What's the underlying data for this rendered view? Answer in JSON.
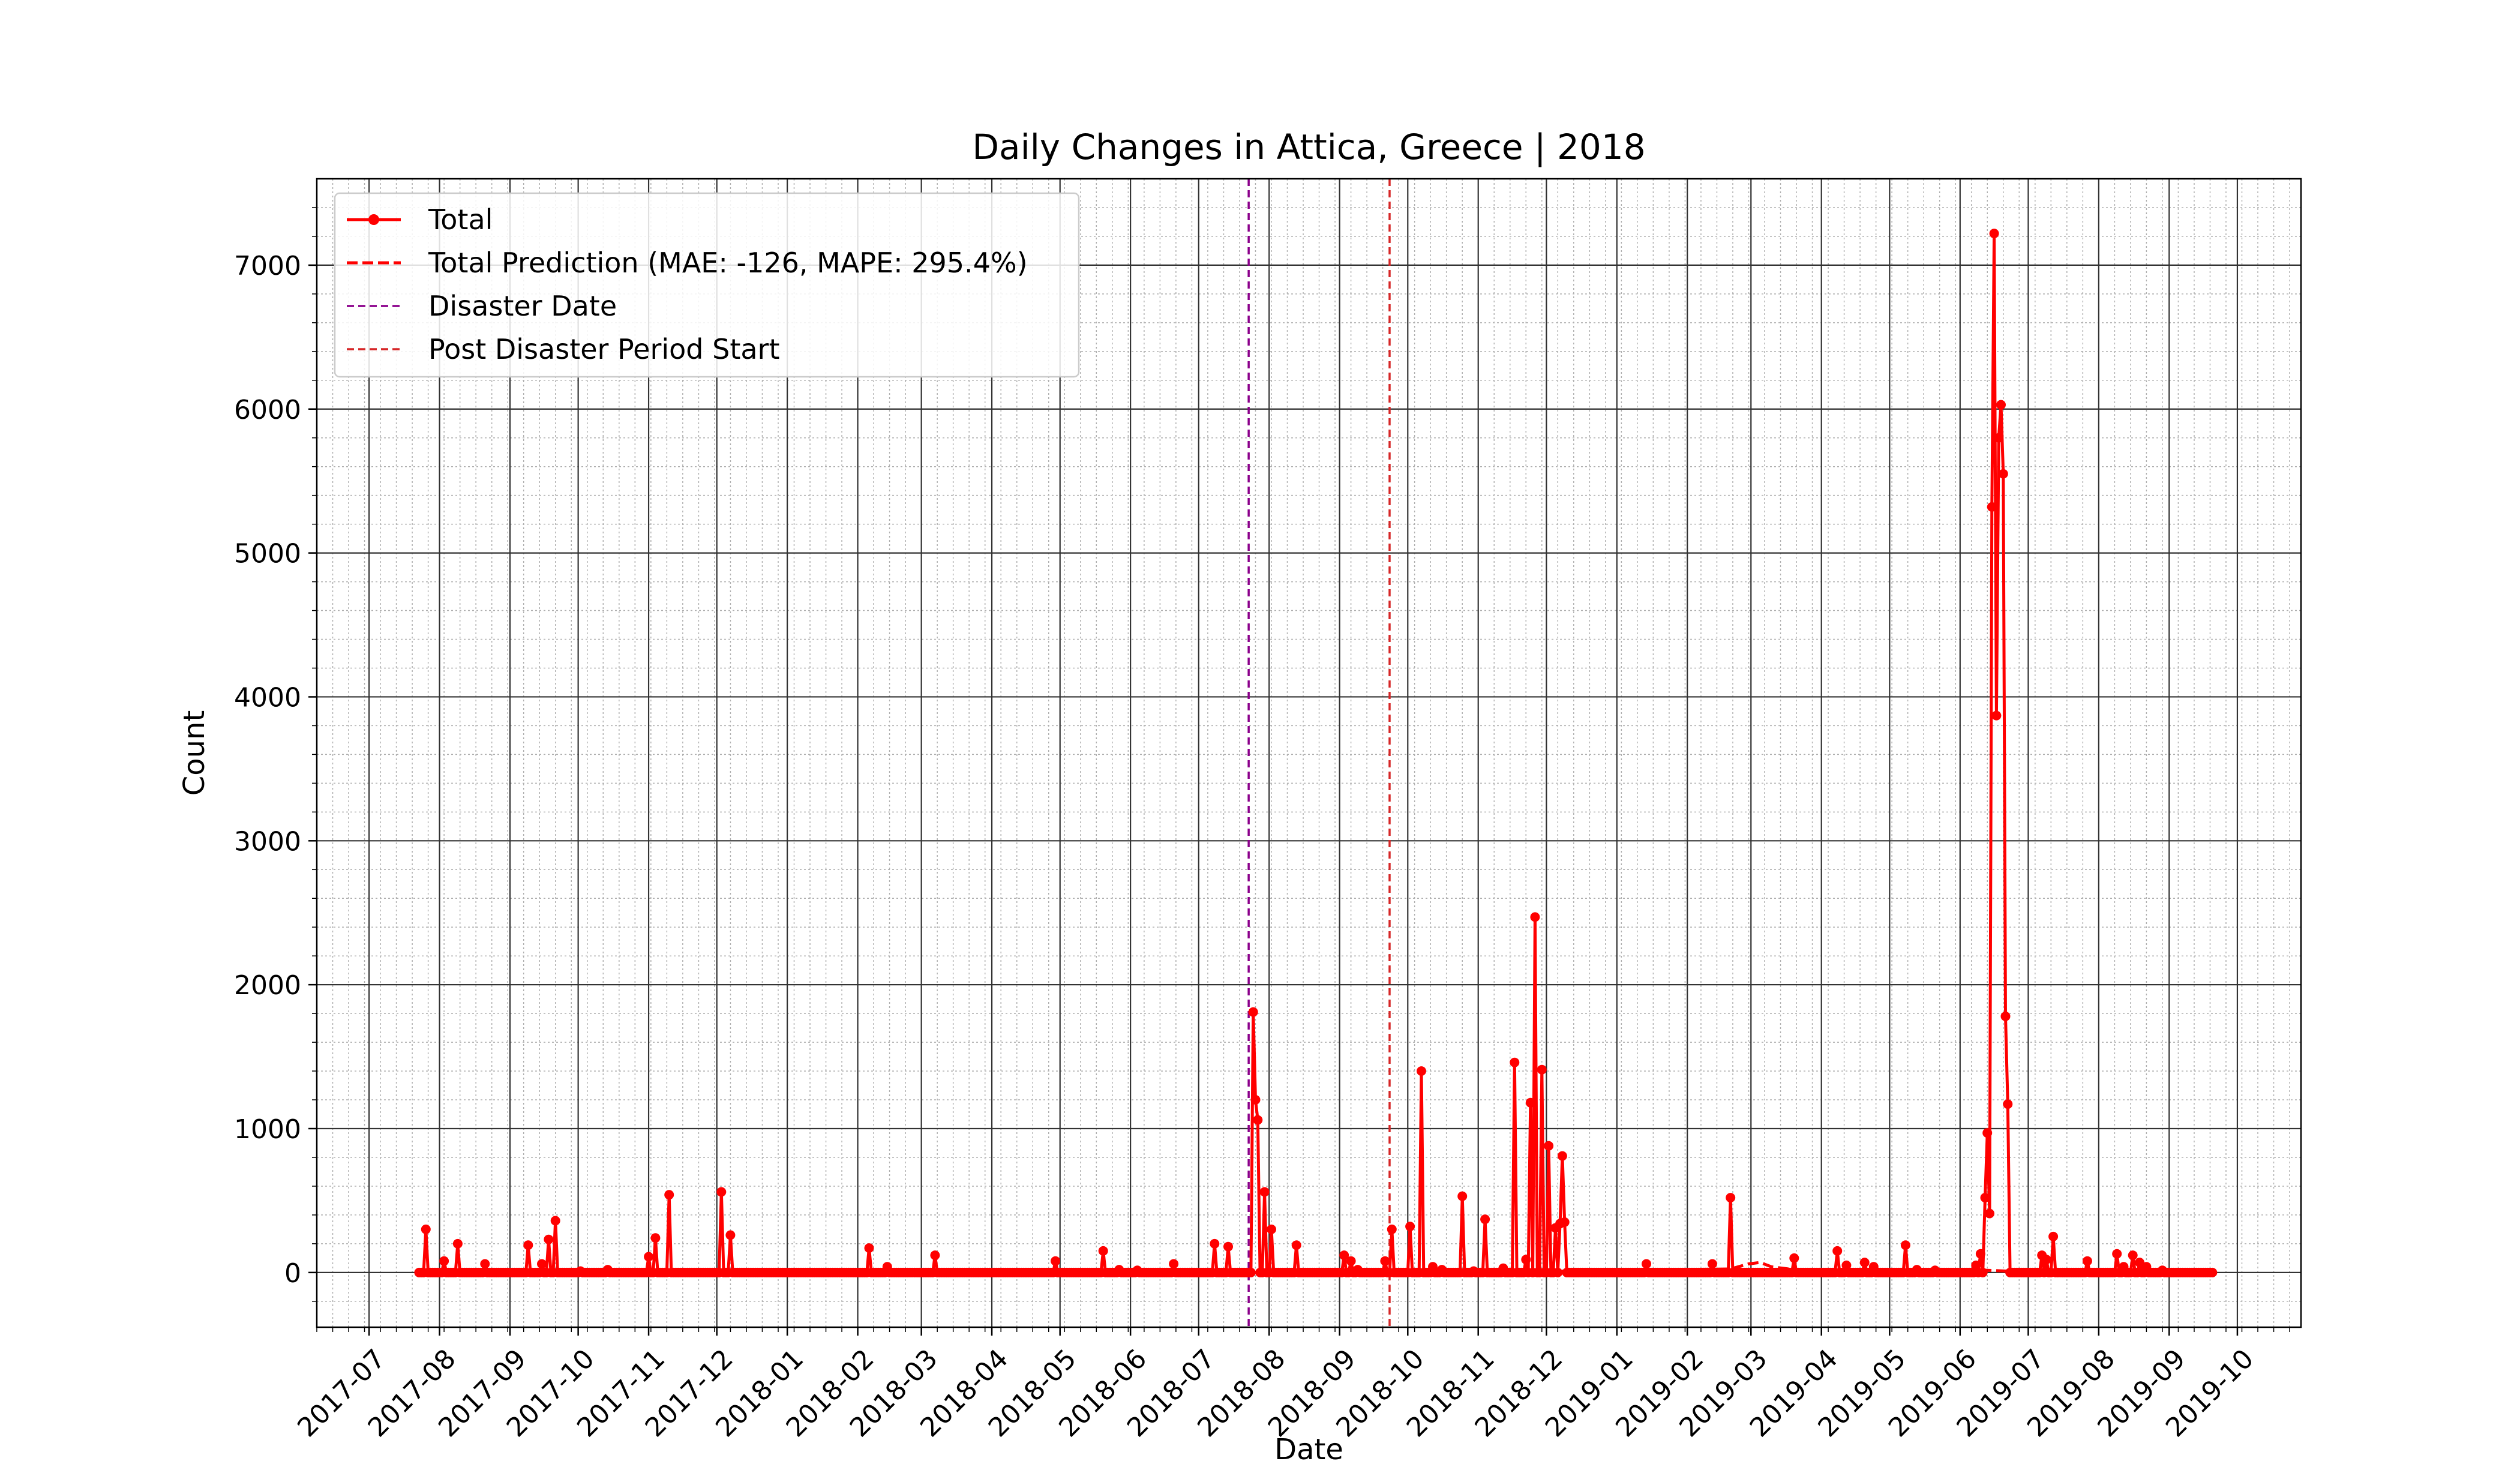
{
  "chart_data": {
    "type": "line",
    "title": "Daily Changes in Attica, Greece | 2018",
    "xlabel": "Date",
    "ylabel": "Count",
    "xlim": [
      "2017-06-08",
      "2019-10-29"
    ],
    "ylim": [
      -380,
      7600
    ],
    "grid": true,
    "legend_position": "top-left",
    "x_tick_labels": [
      "2017-07",
      "2017-08",
      "2017-09",
      "2017-10",
      "2017-11",
      "2017-12",
      "2018-01",
      "2018-02",
      "2018-03",
      "2018-04",
      "2018-05",
      "2018-06",
      "2018-07",
      "2018-08",
      "2018-09",
      "2018-10",
      "2018-11",
      "2018-12",
      "2019-01",
      "2019-02",
      "2019-03",
      "2019-04",
      "2019-05",
      "2019-06",
      "2019-07",
      "2019-08",
      "2019-09",
      "2019-10"
    ],
    "x_tick_dates": [
      "2017-07-01",
      "2017-08-01",
      "2017-09-01",
      "2017-10-01",
      "2017-11-01",
      "2017-12-01",
      "2018-01-01",
      "2018-02-01",
      "2018-03-01",
      "2018-04-01",
      "2018-05-01",
      "2018-06-01",
      "2018-07-01",
      "2018-08-01",
      "2018-09-01",
      "2018-10-01",
      "2018-11-01",
      "2018-12-01",
      "2019-01-01",
      "2019-02-01",
      "2019-03-01",
      "2019-04-01",
      "2019-05-01",
      "2019-06-01",
      "2019-07-01",
      "2019-08-01",
      "2019-09-01",
      "2019-10-01"
    ],
    "y_ticks": [
      0,
      1000,
      2000,
      3000,
      4000,
      5000,
      6000,
      7000
    ],
    "y_tick_labels": [
      "0",
      "1000",
      "2000",
      "3000",
      "4000",
      "5000",
      "6000",
      "7000"
    ],
    "vlines": [
      {
        "name": "Disaster Date",
        "date": "2018-07-23",
        "color": "#8b008b"
      },
      {
        "name": "Post Disaster Period Start",
        "date": "2018-09-23",
        "color": "#d62728"
      }
    ],
    "series": [
      {
        "name": "Total",
        "color": "#ff0000",
        "style": "solid-marker",
        "range": [
          "2017-07-23",
          "2019-09-20"
        ],
        "spikes": [
          [
            "2017-07-26",
            300
          ],
          [
            "2017-08-03",
            80
          ],
          [
            "2017-08-09",
            200
          ],
          [
            "2017-08-21",
            60
          ],
          [
            "2017-09-09",
            190
          ],
          [
            "2017-09-15",
            60
          ],
          [
            "2017-09-18",
            230
          ],
          [
            "2017-09-21",
            360
          ],
          [
            "2017-10-02",
            10
          ],
          [
            "2017-10-14",
            20
          ],
          [
            "2017-11-01",
            110
          ],
          [
            "2017-11-04",
            240
          ],
          [
            "2017-11-10",
            540
          ],
          [
            "2017-12-03",
            560
          ],
          [
            "2017-12-07",
            260
          ],
          [
            "2018-02-06",
            170
          ],
          [
            "2018-02-14",
            40
          ],
          [
            "2018-03-07",
            120
          ],
          [
            "2018-04-29",
            80
          ],
          [
            "2018-05-20",
            150
          ],
          [
            "2018-05-27",
            20
          ],
          [
            "2018-06-04",
            15
          ],
          [
            "2018-06-20",
            60
          ],
          [
            "2018-07-08",
            200
          ],
          [
            "2018-07-14",
            180
          ],
          [
            "2018-07-25",
            1810
          ],
          [
            "2018-07-26",
            1200
          ],
          [
            "2018-07-27",
            1060
          ],
          [
            "2018-07-30",
            560
          ],
          [
            "2018-08-02",
            300
          ],
          [
            "2018-08-13",
            190
          ],
          [
            "2018-09-03",
            120
          ],
          [
            "2018-09-06",
            80
          ],
          [
            "2018-09-09",
            20
          ],
          [
            "2018-09-21",
            80
          ],
          [
            "2018-09-24",
            300
          ],
          [
            "2018-10-02",
            320
          ],
          [
            "2018-10-07",
            1400
          ],
          [
            "2018-10-12",
            40
          ],
          [
            "2018-10-16",
            20
          ],
          [
            "2018-10-25",
            530
          ],
          [
            "2018-10-30",
            10
          ],
          [
            "2018-11-04",
            370
          ],
          [
            "2018-11-12",
            30
          ],
          [
            "2018-11-17",
            1460
          ],
          [
            "2018-11-22",
            90
          ],
          [
            "2018-11-24",
            1180
          ],
          [
            "2018-11-26",
            2470
          ],
          [
            "2018-11-29",
            1410
          ],
          [
            "2018-12-02",
            880
          ],
          [
            "2018-12-05",
            310
          ],
          [
            "2018-12-07",
            340
          ],
          [
            "2018-12-08",
            810
          ],
          [
            "2018-12-09",
            350
          ],
          [
            "2019-01-14",
            60
          ],
          [
            "2019-02-12",
            60
          ],
          [
            "2019-02-20",
            520
          ],
          [
            "2019-03-20",
            100
          ],
          [
            "2019-04-08",
            150
          ],
          [
            "2019-04-12",
            50
          ],
          [
            "2019-04-20",
            70
          ],
          [
            "2019-04-24",
            40
          ],
          [
            "2019-05-08",
            190
          ],
          [
            "2019-05-13",
            20
          ],
          [
            "2019-05-21",
            15
          ],
          [
            "2019-06-08",
            50
          ],
          [
            "2019-06-10",
            130
          ],
          [
            "2019-06-12",
            520
          ],
          [
            "2019-06-13",
            970
          ],
          [
            "2019-06-14",
            410
          ],
          [
            "2019-06-15",
            5320
          ],
          [
            "2019-06-16",
            7220
          ],
          [
            "2019-06-17",
            3870
          ],
          [
            "2019-06-18",
            5800
          ],
          [
            "2019-06-19",
            6030
          ],
          [
            "2019-06-20",
            5550
          ],
          [
            "2019-06-21",
            1780
          ],
          [
            "2019-06-22",
            1170
          ],
          [
            "2019-07-07",
            120
          ],
          [
            "2019-07-09",
            90
          ],
          [
            "2019-07-12",
            250
          ],
          [
            "2019-07-27",
            80
          ],
          [
            "2019-08-09",
            130
          ],
          [
            "2019-08-12",
            40
          ],
          [
            "2019-08-16",
            120
          ],
          [
            "2019-08-19",
            70
          ],
          [
            "2019-08-22",
            40
          ],
          [
            "2019-08-29",
            15
          ]
        ]
      },
      {
        "name": "Total Prediction (MAE: -126, MAPE: 295.4%)",
        "color": "#ff0000",
        "style": "dashed",
        "range": [
          "2018-09-23",
          "2019-09-20"
        ],
        "values": [
          [
            "2018-09-23",
            5
          ],
          [
            "2018-10-20",
            8
          ],
          [
            "2018-12-10",
            10
          ],
          [
            "2019-02-20",
            25
          ],
          [
            "2019-02-28",
            60
          ],
          [
            "2019-03-05",
            70
          ],
          [
            "2019-03-10",
            40
          ],
          [
            "2019-03-20",
            20
          ],
          [
            "2019-05-20",
            15
          ],
          [
            "2019-06-05",
            20
          ],
          [
            "2019-06-22",
            10
          ],
          [
            "2019-09-20",
            5
          ]
        ]
      }
    ]
  }
}
